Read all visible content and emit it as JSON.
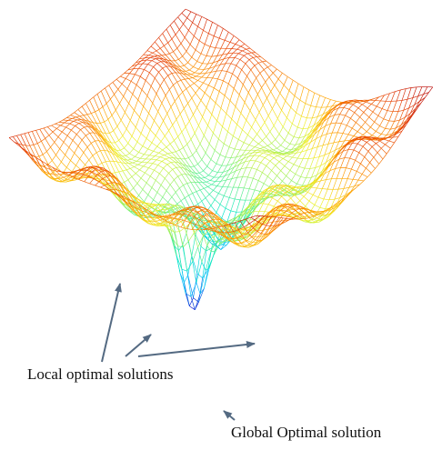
{
  "labels": {
    "local": "Local optimal solutions",
    "global": "Global Optimal solution"
  },
  "colors": {
    "background": "#ffffff",
    "arrow": "#546a82",
    "label_text": "#111111",
    "mesh_colormap": [
      "#0000c8",
      "#00b4ff",
      "#00e6c8",
      "#78f078",
      "#f0f028",
      "#ffa000",
      "#e63c00",
      "#b40000"
    ]
  },
  "surface": {
    "kind": "wireframe-mesh",
    "description_shown": false,
    "minima": [
      {
        "type": "global"
      },
      {
        "type": "local"
      },
      {
        "type": "local"
      },
      {
        "type": "local"
      }
    ]
  }
}
